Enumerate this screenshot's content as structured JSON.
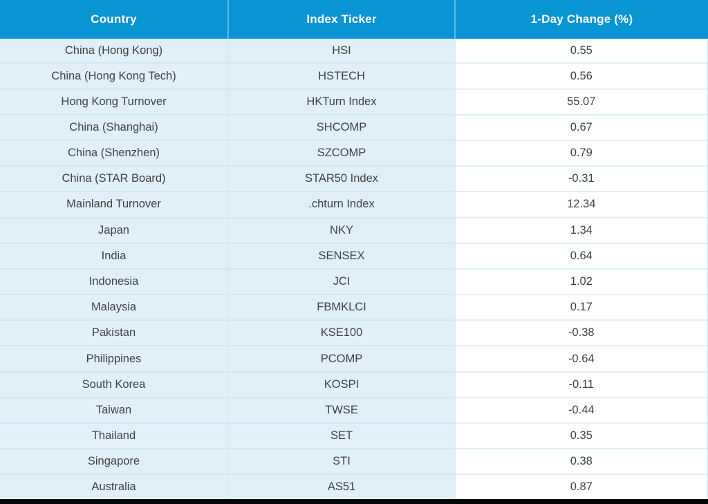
{
  "colors": {
    "header_bg": "#0994d4",
    "header_text": "#ffffff",
    "row_bg": "#e1f0f8",
    "value_bg": "#ffffff",
    "divider_h": "#cfe7f2",
    "divider_v": "#d6ebf5",
    "value_divider": "#e0eff7",
    "right_border": "#cde7f2",
    "body_text": "#3d4144",
    "bottom_bar": "#060606"
  },
  "chart_data": {
    "type": "table",
    "title": "",
    "columns": [
      "Country",
      "Index Ticker",
      "1-Day Change (%)"
    ],
    "rows": [
      {
        "country": "China (Hong Kong)",
        "ticker": "HSI",
        "change": "0.55"
      },
      {
        "country": "China (Hong Kong Tech)",
        "ticker": "HSTECH",
        "change": "0.56"
      },
      {
        "country": "Hong Kong Turnover",
        "ticker": "HKTurn Index",
        "change": "55.07"
      },
      {
        "country": "China (Shanghai)",
        "ticker": "SHCOMP",
        "change": "0.67"
      },
      {
        "country": "China (Shenzhen)",
        "ticker": "SZCOMP",
        "change": "0.79"
      },
      {
        "country": "China (STAR Board)",
        "ticker": "STAR50 Index",
        "change": "-0.31"
      },
      {
        "country": "Mainland Turnover",
        "ticker": ".chturn Index",
        "change": "12.34"
      },
      {
        "country": "Japan",
        "ticker": "NKY",
        "change": "1.34"
      },
      {
        "country": "India",
        "ticker": "SENSEX",
        "change": "0.64"
      },
      {
        "country": "Indonesia",
        "ticker": "JCI",
        "change": "1.02"
      },
      {
        "country": "Malaysia",
        "ticker": "FBMKLCI",
        "change": "0.17"
      },
      {
        "country": "Pakistan",
        "ticker": "KSE100",
        "change": "-0.38"
      },
      {
        "country": "Philippines",
        "ticker": "PCOMP",
        "change": "-0.64"
      },
      {
        "country": "South Korea",
        "ticker": "KOSPI",
        "change": "-0.11"
      },
      {
        "country": "Taiwan",
        "ticker": "TWSE",
        "change": "-0.44"
      },
      {
        "country": "Thailand",
        "ticker": "SET",
        "change": "0.35"
      },
      {
        "country": "Singapore",
        "ticker": "STI",
        "change": "0.38"
      },
      {
        "country": "Australia",
        "ticker": "AS51",
        "change": "0.87"
      }
    ]
  }
}
